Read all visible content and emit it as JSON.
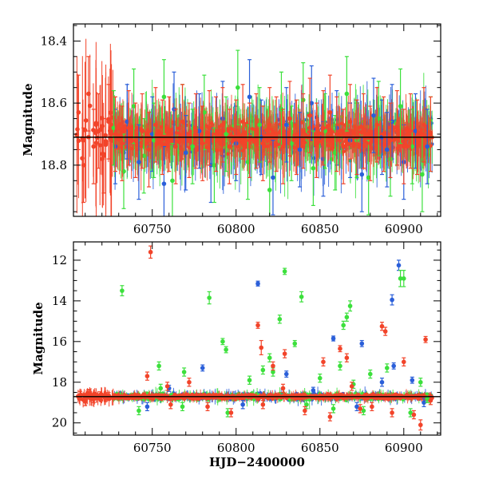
{
  "chart_data": [
    {
      "type": "scatter",
      "name": "upper-panel",
      "xlabel": "",
      "ylabel": "Magnitude",
      "xlim": [
        60703,
        60922
      ],
      "ylim": [
        18.965,
        18.345
      ],
      "y_inverted": true,
      "x_ticks": [
        60750,
        60800,
        60850,
        60900
      ],
      "x_tick_labels": [
        "60750",
        "60800",
        "60850",
        "60900"
      ],
      "y_ticks": [
        18.4,
        18.6,
        18.8
      ],
      "y_tick_labels": [
        "18.4",
        "18.6",
        "18.8"
      ],
      "reference_line": 18.71,
      "error_bars": true,
      "series": [
        {
          "color": "#2b5fd9",
          "x": [
            60728,
            60735,
            60742,
            60750,
            60757,
            60763,
            60770,
            60778,
            60785,
            60792,
            60800,
            60808,
            60815,
            60822,
            60830,
            60838,
            60845,
            60852,
            60860,
            60868,
            60875,
            60882,
            60887,
            60890,
            60893,
            60900,
            60907,
            60914
          ],
          "y": [
            18.74,
            18.66,
            18.79,
            18.7,
            18.86,
            18.62,
            18.76,
            18.69,
            18.8,
            18.65,
            18.73,
            18.58,
            18.71,
            18.84,
            18.67,
            18.75,
            18.6,
            18.78,
            18.68,
            18.72,
            18.83,
            18.64,
            18.71,
            18.75,
            18.66,
            18.79,
            18.69,
            18.74
          ]
        },
        {
          "color": "#3ce03c",
          "x": [
            60727,
            60733,
            60739,
            60745,
            60751,
            60757,
            60762,
            60768,
            60774,
            60781,
            60787,
            60794,
            60801,
            60807,
            60814,
            60820,
            60827,
            60833,
            60840,
            60846,
            60853,
            60859,
            60866,
            60872,
            60879,
            60885,
            60892,
            60898,
            60905,
            60911,
            60916
          ],
          "y": [
            18.68,
            18.82,
            18.61,
            18.77,
            18.72,
            18.58,
            18.85,
            18.66,
            18.74,
            18.63,
            18.8,
            18.7,
            18.55,
            18.79,
            18.67,
            18.88,
            18.62,
            18.73,
            18.59,
            18.81,
            18.69,
            18.76,
            18.57,
            18.72,
            18.84,
            18.65,
            18.78,
            18.61,
            18.74,
            18.83,
            18.7
          ]
        },
        {
          "color": "#f2442a",
          "x": [
            60706,
            60709,
            60712,
            60715,
            60718,
            60721,
            60724,
            60728,
            60732,
            60736,
            60740,
            60744,
            60748,
            60752,
            60756,
            60760,
            60764,
            60768,
            60772,
            60776,
            60780,
            60784,
            60788,
            60792,
            60796,
            60800,
            60804,
            60808,
            60812,
            60816,
            60820,
            60824,
            60828,
            60832,
            60836,
            60840,
            60844,
            60848,
            60852,
            60856,
            60860,
            60864,
            60868,
            60872,
            60876,
            60880,
            60884,
            60888,
            60892,
            60896,
            60900,
            60904,
            60908,
            60912,
            60916
          ],
          "y": [
            18.63,
            18.8,
            18.57,
            18.74,
            18.69,
            18.77,
            18.66,
            18.7,
            18.73,
            18.68,
            18.72,
            18.69,
            18.75,
            18.67,
            18.71,
            18.7,
            18.74,
            18.66,
            18.72,
            18.69,
            18.73,
            18.68,
            18.7,
            18.67,
            18.74,
            18.71,
            18.66,
            18.72,
            18.69,
            18.73,
            18.67,
            18.7,
            18.74,
            18.65,
            18.71,
            18.69,
            18.64,
            18.72,
            18.68,
            18.63,
            18.7,
            18.74,
            18.66,
            18.71,
            18.69,
            18.73,
            18.67,
            18.7,
            18.72,
            18.68,
            18.74,
            18.69,
            18.71,
            18.67,
            18.7
          ]
        }
      ]
    },
    {
      "type": "scatter",
      "name": "lower-panel",
      "xlabel": "HJD−2400000",
      "ylabel": "Magnitude",
      "xlim": [
        60703,
        60922
      ],
      "ylim": [
        20.6,
        11.1
      ],
      "y_inverted": true,
      "x_ticks": [
        60750,
        60800,
        60850,
        60900
      ],
      "x_tick_labels": [
        "60750",
        "60800",
        "60850",
        "60900"
      ],
      "y_ticks": [
        12,
        14,
        16,
        18,
        20
      ],
      "y_tick_labels": [
        "12",
        "14",
        "16",
        "18",
        "20"
      ],
      "reference_line": 18.71,
      "error_bars": true,
      "series": [
        {
          "color": "#2b5fd9",
          "x": [
            60813,
            60858,
            60875,
            60893,
            60897,
            60894,
            60780,
            60830,
            60887,
            60912,
            60747,
            60760,
            60804,
            60846,
            60872,
            60905
          ],
          "y": [
            13.15,
            15.85,
            16.1,
            13.95,
            12.25,
            17.2,
            17.3,
            17.6,
            18.0,
            19.0,
            19.2,
            18.3,
            19.1,
            18.4,
            19.2,
            17.9
          ],
          "yerr": [
            0.12,
            0.12,
            0.15,
            0.25,
            0.25,
            0.15,
            0.15,
            0.15,
            0.2,
            0.2,
            0.2,
            0.15,
            0.2,
            0.15,
            0.2,
            0.15
          ]
        },
        {
          "color": "#3ce03c",
          "x": [
            60732,
            60755,
            60769,
            60784,
            60792,
            60794,
            60820,
            60826,
            60829,
            60835,
            60839,
            60864,
            60866,
            60868,
            60898,
            60900,
            60754,
            60808,
            60816,
            60822,
            60850,
            60862,
            60870,
            60880,
            60890,
            60910,
            60742,
            60768,
            60795,
            60842,
            60858,
            60876,
            60904,
            60914
          ],
          "y": [
            13.5,
            18.3,
            17.5,
            13.85,
            16.0,
            16.4,
            16.8,
            14.9,
            12.55,
            16.1,
            13.8,
            15.2,
            14.8,
            14.25,
            12.9,
            12.9,
            17.2,
            17.9,
            17.4,
            17.5,
            17.8,
            17.2,
            18.1,
            17.6,
            17.3,
            18.0,
            19.4,
            19.2,
            19.5,
            19.1,
            19.3,
            19.4,
            19.5,
            18.8
          ],
          "yerr": [
            0.25,
            0.2,
            0.2,
            0.3,
            0.15,
            0.15,
            0.2,
            0.2,
            0.15,
            0.15,
            0.25,
            0.2,
            0.2,
            0.25,
            0.4,
            0.4,
            0.2,
            0.2,
            0.2,
            0.2,
            0.2,
            0.2,
            0.2,
            0.2,
            0.2,
            0.2,
            0.2,
            0.2,
            0.2,
            0.2,
            0.2,
            0.2,
            0.2,
            0.2
          ]
        },
        {
          "color": "#f2442a",
          "x": [
            60749,
            60747,
            60759,
            60813,
            60815,
            60822,
            60829,
            60852,
            60862,
            60866,
            60887,
            60889,
            60913,
            60900,
            60707,
            60710,
            60712,
            60715,
            60719,
            60722,
            60724,
            60727,
            60761,
            60772,
            60783,
            60797,
            60816,
            60828,
            60841,
            60856,
            60869,
            60874,
            60881,
            60893,
            60906,
            60910,
            60916
          ],
          "y": [
            11.6,
            17.7,
            18.2,
            15.2,
            16.3,
            17.2,
            16.6,
            17.0,
            16.35,
            16.8,
            15.25,
            15.5,
            15.9,
            17.0,
            18.65,
            18.95,
            18.55,
            18.8,
            18.62,
            18.72,
            18.66,
            18.71,
            19.1,
            18.0,
            19.2,
            19.5,
            19.1,
            18.3,
            19.4,
            19.7,
            18.2,
            19.3,
            19.2,
            19.5,
            19.6,
            20.1,
            18.9
          ],
          "yerr": [
            0.3,
            0.2,
            0.2,
            0.15,
            0.35,
            0.2,
            0.2,
            0.2,
            0.15,
            0.2,
            0.2,
            0.2,
            0.15,
            0.2,
            0.2,
            0.2,
            0.2,
            0.2,
            0.15,
            0.15,
            0.15,
            0.15,
            0.2,
            0.2,
            0.2,
            0.2,
            0.2,
            0.2,
            0.2,
            0.2,
            0.2,
            0.2,
            0.2,
            0.2,
            0.2,
            0.25,
            0.2
          ]
        }
      ]
    }
  ]
}
